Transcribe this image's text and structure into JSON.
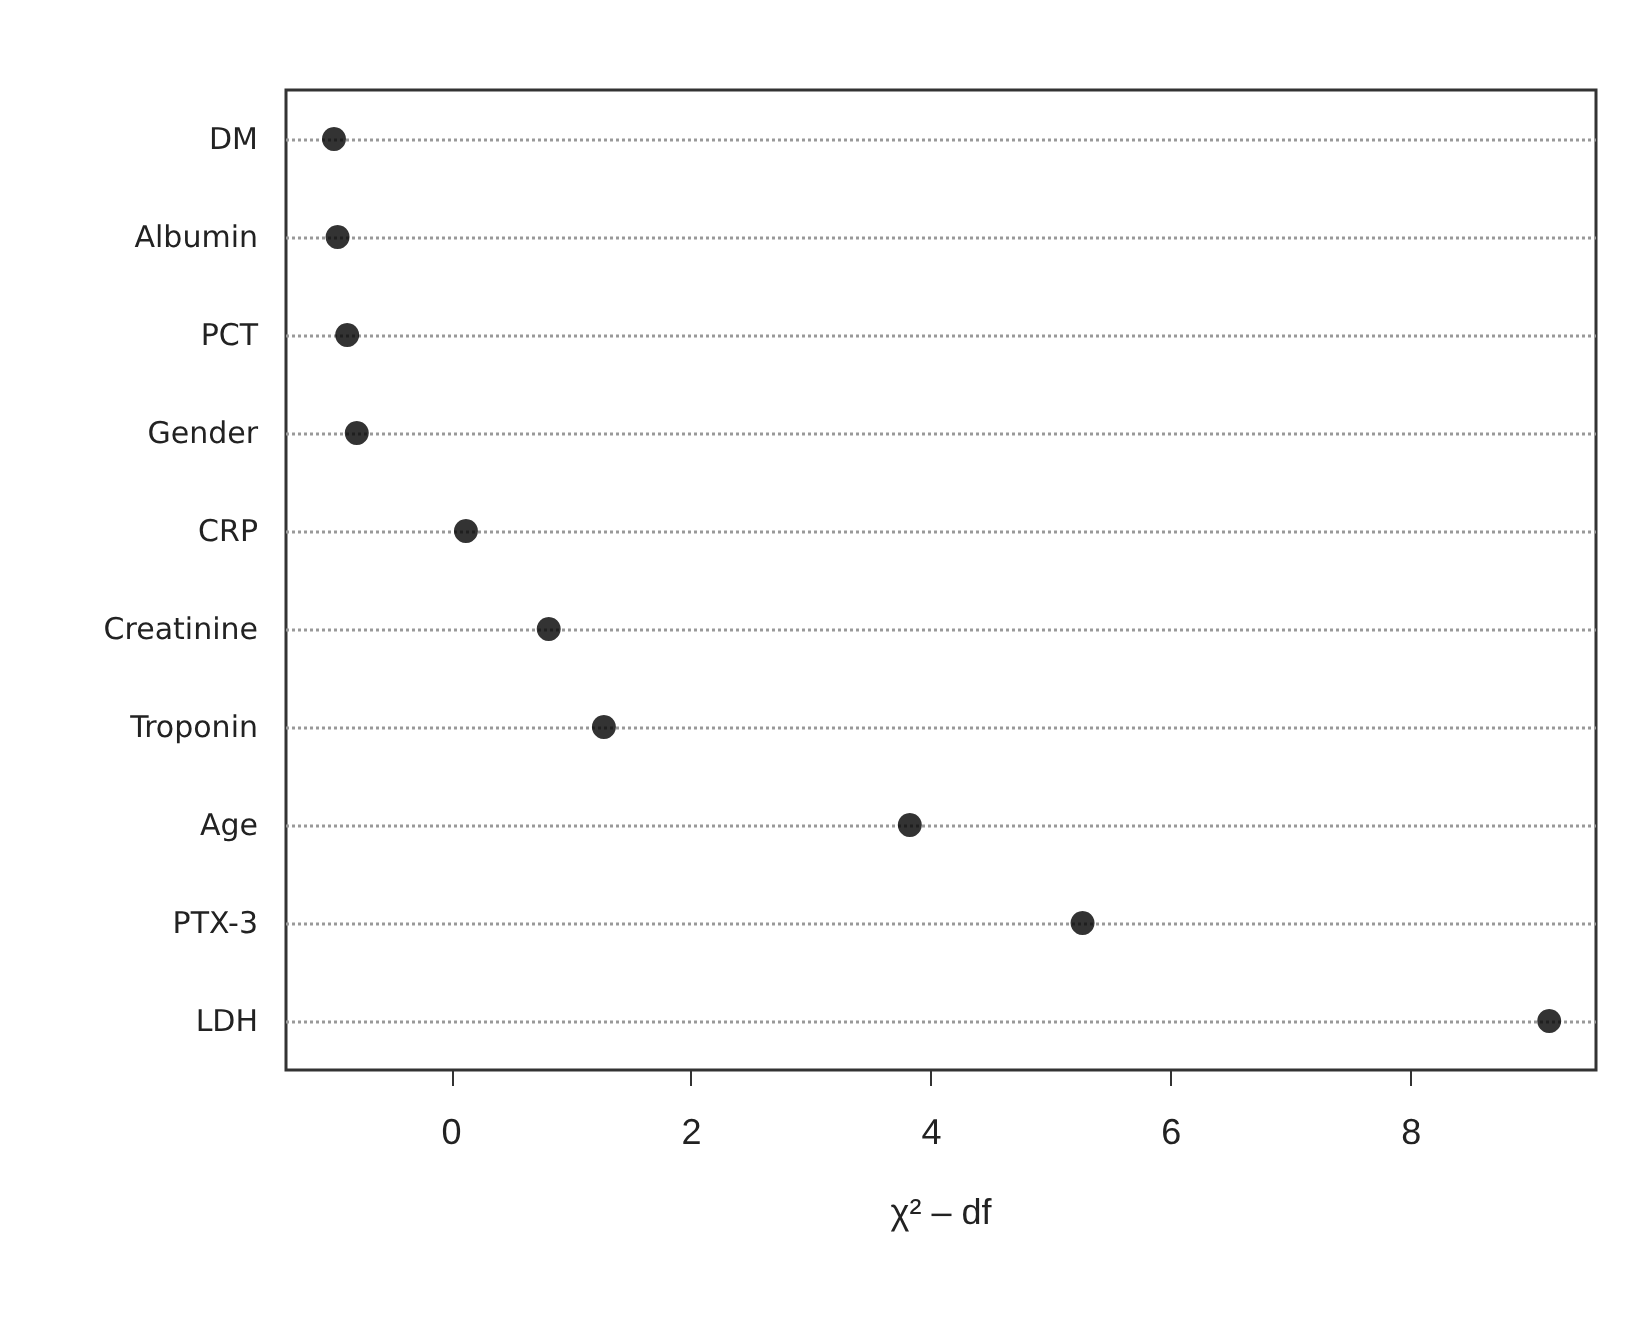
{
  "chart_data": {
    "type": "scatter",
    "orientation": "horizontal",
    "xlabel": "χ² – df",
    "categories": [
      "DM",
      "Albumin",
      "PCT",
      "Gender",
      "CRP",
      "Creatinine",
      "Troponin",
      "Age",
      "PTX-3",
      "LDH"
    ],
    "values": [
      -0.98,
      -0.95,
      -0.87,
      -0.79,
      0.12,
      0.81,
      1.27,
      3.82,
      5.26,
      9.15
    ],
    "color": "#000000",
    "marker": "circle",
    "xlim": [
      -1.38,
      9.54
    ],
    "xticks": [
      0,
      2,
      4,
      6,
      8
    ],
    "grid": "y"
  }
}
